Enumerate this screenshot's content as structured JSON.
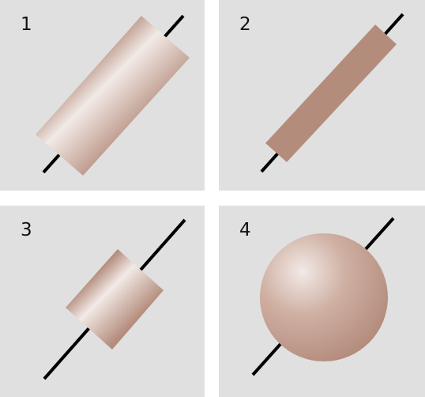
{
  "colors": {
    "background": "#e0e0e0",
    "gap": "#ffffff",
    "axis": "#000000",
    "body_dark": "#b48c7c",
    "body_light": "#f2eae6"
  },
  "panels": [
    {
      "label": "1",
      "shape": "long-wide-cylinder"
    },
    {
      "label": "2",
      "shape": "long-thin-cylinder"
    },
    {
      "label": "3",
      "shape": "short-cylinder"
    },
    {
      "label": "4",
      "shape": "sphere"
    }
  ]
}
